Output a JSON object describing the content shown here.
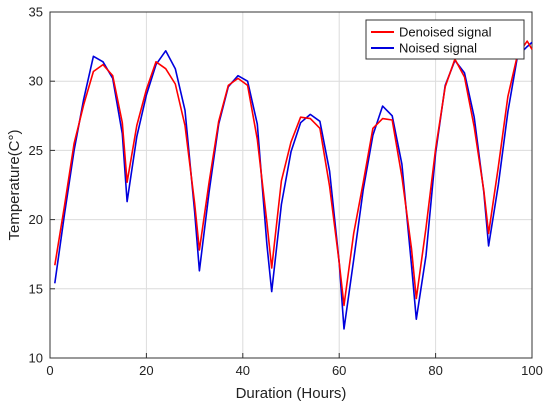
{
  "chart_data": {
    "type": "line",
    "title": "",
    "xlabel": "Duration (Hours)",
    "ylabel": "Temperature(C°)",
    "xlim": [
      0,
      100
    ],
    "ylim": [
      10,
      35
    ],
    "xticks": [
      0,
      20,
      40,
      60,
      80,
      100
    ],
    "yticks": [
      10,
      15,
      20,
      25,
      30,
      35
    ],
    "grid": true,
    "legend_position": "top-right",
    "series": [
      {
        "name": "Denoised signal",
        "color": "#ff0000",
        "x": [
          1,
          3,
          5,
          7,
          9,
          11,
          13,
          15,
          16,
          18,
          20,
          22,
          24,
          26,
          28,
          30,
          31,
          33,
          35,
          37,
          39,
          41,
          43,
          45,
          46,
          48,
          50,
          52,
          54,
          56,
          58,
          60,
          61,
          63,
          65,
          67,
          69,
          71,
          73,
          75,
          76,
          78,
          80,
          82,
          84,
          86,
          88,
          90,
          91,
          93,
          95,
          97,
          99,
          100
        ],
        "y": [
          16.7,
          21.0,
          25.5,
          28.3,
          30.7,
          31.2,
          30.4,
          27.0,
          22.7,
          26.8,
          29.4,
          31.4,
          30.9,
          29.8,
          26.8,
          21.2,
          17.8,
          22.7,
          27.1,
          29.7,
          30.2,
          29.7,
          25.8,
          19.8,
          16.5,
          22.8,
          25.6,
          27.4,
          27.3,
          26.6,
          22.4,
          16.9,
          13.8,
          19.0,
          22.7,
          26.6,
          27.3,
          27.2,
          23.1,
          17.9,
          14.3,
          19.4,
          25.1,
          29.6,
          31.6,
          30.3,
          26.7,
          22.1,
          19.0,
          23.8,
          28.9,
          31.9,
          32.9,
          32.3
        ]
      },
      {
        "name": "Noised signal",
        "color": "#0000dd",
        "x": [
          1,
          3,
          5,
          7,
          9,
          11,
          13,
          15,
          16,
          18,
          20,
          22,
          24,
          26,
          28,
          30,
          31,
          33,
          35,
          37,
          39,
          41,
          43,
          45,
          46,
          48,
          50,
          52,
          54,
          56,
          58,
          60,
          61,
          63,
          65,
          67,
          69,
          71,
          73,
          75,
          76,
          78,
          80,
          82,
          84,
          86,
          88,
          90,
          91,
          93,
          95,
          97,
          99,
          100
        ],
        "y": [
          15.4,
          20.4,
          25.0,
          28.7,
          31.8,
          31.4,
          30.2,
          26.2,
          21.3,
          26.0,
          29.0,
          31.2,
          32.2,
          30.9,
          27.9,
          20.6,
          16.3,
          22.0,
          26.9,
          29.6,
          30.4,
          30.0,
          26.9,
          18.2,
          14.8,
          21.1,
          24.9,
          27.0,
          27.6,
          27.1,
          23.5,
          16.9,
          12.1,
          17.1,
          22.2,
          26.1,
          28.2,
          27.5,
          24.0,
          16.7,
          12.8,
          17.4,
          24.8,
          29.7,
          31.5,
          30.6,
          27.4,
          22.0,
          18.1,
          22.5,
          27.8,
          31.8,
          32.5,
          32.8
        ]
      }
    ]
  }
}
